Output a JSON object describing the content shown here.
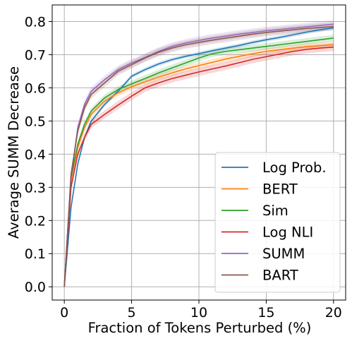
{
  "chart_data": {
    "type": "line",
    "title": "",
    "xlabel": "Fraction of Tokens Perturbed (%)",
    "ylabel": "Average SUMM Decrease",
    "xlim": [
      -0.9,
      20.9
    ],
    "ylim": [
      -0.04,
      0.85
    ],
    "xticks": [
      0,
      5,
      10,
      15,
      20
    ],
    "xtick_labels": [
      "0",
      "5",
      "10",
      "15",
      "20"
    ],
    "yticks": [
      0.0,
      0.1,
      0.2,
      0.3,
      0.4,
      0.5,
      0.6,
      0.7,
      0.8
    ],
    "ytick_labels": [
      "0.0",
      "0.1",
      "0.2",
      "0.3",
      "0.4",
      "0.5",
      "0.6",
      "0.7",
      "0.8"
    ],
    "grid": true,
    "legend_position": "lower-right",
    "x": [
      0,
      0.5,
      1,
      1.5,
      2,
      3,
      4,
      5,
      6,
      7,
      8,
      9,
      10,
      11,
      12,
      13,
      14,
      15,
      16,
      17,
      18,
      19,
      20
    ],
    "series": [
      {
        "name": "Log Prob.",
        "color": "#1f77b4",
        "band": 0.006,
        "values": [
          0.0,
          0.24,
          0.37,
          0.45,
          0.5,
          0.55,
          0.59,
          0.635,
          0.655,
          0.672,
          0.685,
          0.695,
          0.703,
          0.712,
          0.72,
          0.728,
          0.737,
          0.745,
          0.752,
          0.76,
          0.768,
          0.775,
          0.781
        ]
      },
      {
        "name": "BERT",
        "color": "#ff7f0e",
        "band": 0.01,
        "values": [
          0.0,
          0.32,
          0.42,
          0.48,
          0.52,
          0.56,
          0.585,
          0.603,
          0.618,
          0.632,
          0.645,
          0.657,
          0.667,
          0.677,
          0.687,
          0.695,
          0.703,
          0.71,
          0.715,
          0.72,
          0.724,
          0.727,
          0.73
        ]
      },
      {
        "name": "Sim",
        "color": "#2ca02c",
        "band": 0.01,
        "values": [
          0.0,
          0.33,
          0.43,
          0.49,
          0.53,
          0.57,
          0.595,
          0.612,
          0.628,
          0.645,
          0.66,
          0.675,
          0.69,
          0.703,
          0.71,
          0.715,
          0.72,
          0.725,
          0.73,
          0.735,
          0.74,
          0.745,
          0.75
        ]
      },
      {
        "name": "Log NLI",
        "color": "#d62728",
        "band": 0.012,
        "values": [
          0.0,
          0.3,
          0.4,
          0.45,
          0.49,
          0.52,
          0.548,
          0.575,
          0.6,
          0.615,
          0.628,
          0.638,
          0.648,
          0.657,
          0.666,
          0.676,
          0.686,
          0.694,
          0.702,
          0.71,
          0.716,
          0.72,
          0.723
        ]
      },
      {
        "name": "SUMM",
        "color": "#9467bd",
        "band": 0.012,
        "values": [
          0.0,
          0.33,
          0.48,
          0.55,
          0.59,
          0.625,
          0.655,
          0.675,
          0.692,
          0.71,
          0.725,
          0.735,
          0.743,
          0.75,
          0.756,
          0.762,
          0.767,
          0.772,
          0.776,
          0.78,
          0.784,
          0.788,
          0.792
        ]
      },
      {
        "name": "BART",
        "color": "#8c564b",
        "band": 0.012,
        "values": [
          0.0,
          0.34,
          0.47,
          0.54,
          0.58,
          0.615,
          0.65,
          0.67,
          0.69,
          0.707,
          0.72,
          0.73,
          0.737,
          0.744,
          0.75,
          0.756,
          0.762,
          0.767,
          0.771,
          0.775,
          0.779,
          0.782,
          0.785
        ]
      }
    ]
  }
}
